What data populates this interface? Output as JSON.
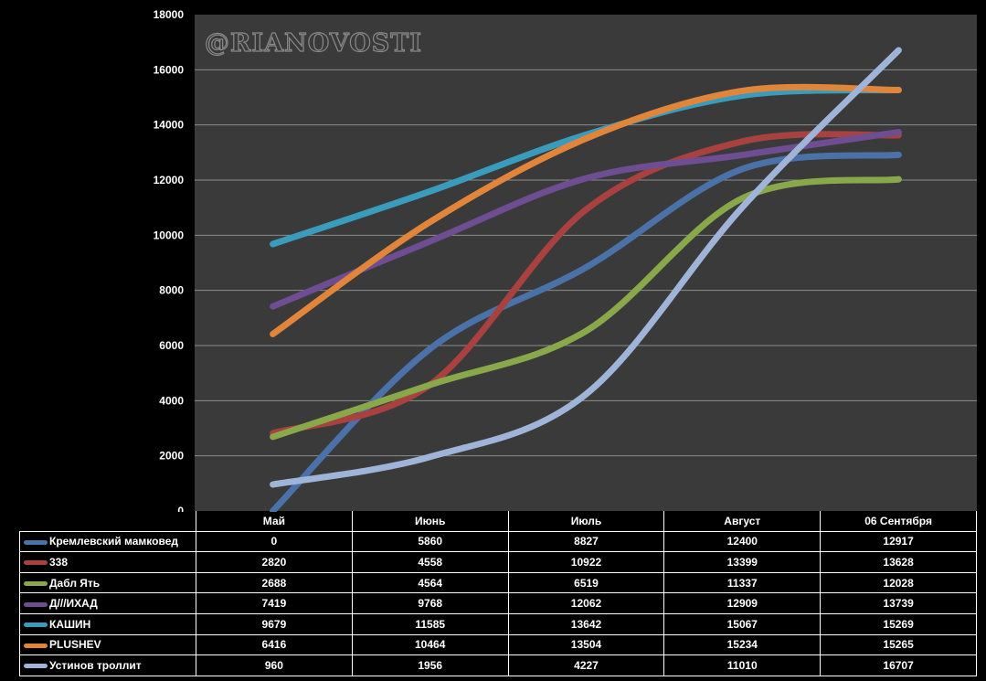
{
  "watermark": "@RIANOVOSTI",
  "chart_data": {
    "type": "line",
    "categories": [
      "Май",
      "Июнь",
      "Июль",
      "Август",
      "06 Сентября"
    ],
    "ylim": [
      0,
      18000
    ],
    "yticks": [
      "0",
      "2000",
      "4000",
      "6000",
      "8000",
      "10000",
      "12000",
      "14000",
      "16000",
      "18000"
    ],
    "grid": true,
    "legend": "data-table-below",
    "series": [
      {
        "name": "Кремлевский мамковед",
        "color": "#4a72a8",
        "values": [
          0,
          5860,
          8827,
          12400,
          12917
        ]
      },
      {
        "name": "338",
        "color": "#a8413f",
        "values": [
          2820,
          4558,
          10922,
          13399,
          13628
        ]
      },
      {
        "name": "Дабл Ять",
        "color": "#88a84a",
        "values": [
          2688,
          4564,
          6519,
          11337,
          12028
        ]
      },
      {
        "name": "Д///ИХАД",
        "color": "#6e4d92",
        "values": [
          7419,
          9768,
          12062,
          12909,
          13739
        ]
      },
      {
        "name": "КАШИН",
        "color": "#3a9cbc",
        "values": [
          9679,
          11585,
          13642,
          15067,
          15269
        ]
      },
      {
        "name": "PLUSHEV",
        "color": "#e0853a",
        "values": [
          6416,
          10464,
          13504,
          15234,
          15265
        ]
      },
      {
        "name": "Устинов троллит",
        "color": "#9fb4d8",
        "values": [
          960,
          1956,
          4227,
          11010,
          16707
        ]
      }
    ]
  }
}
